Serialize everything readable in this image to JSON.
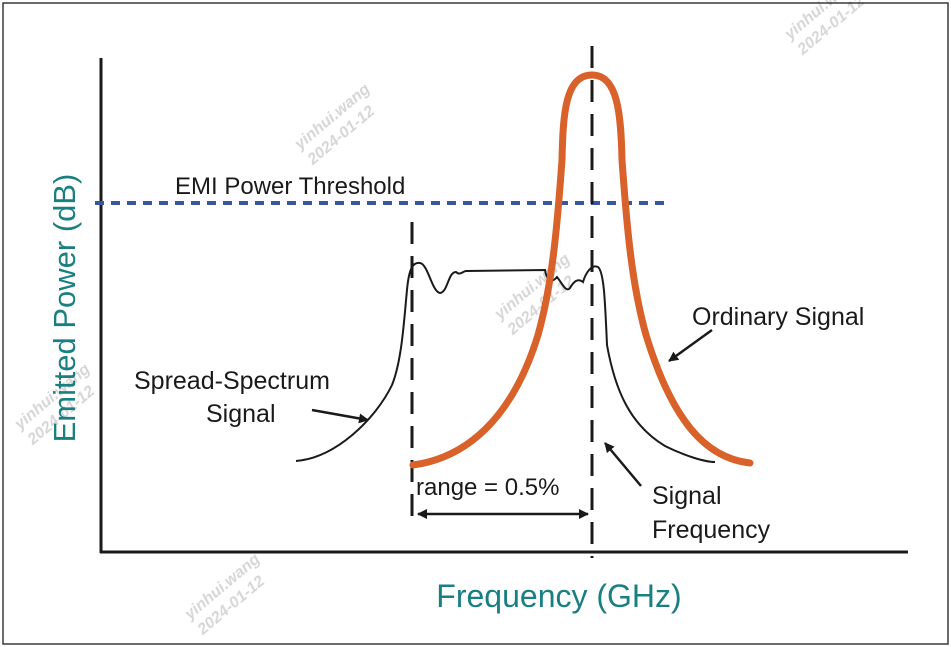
{
  "diagram": {
    "xlabel": "Frequency (GHz)",
    "ylabel": "Emitted Power (dB)",
    "threshold_label": "EMI Power Threshold",
    "ordinary_label": "Ordinary Signal",
    "spread_label_line1": "Spread-Spectrum",
    "spread_label_line2": "Signal",
    "range_label": "range = 0.5%",
    "signal_freq_line1": "Signal",
    "signal_freq_line2": "Frequency",
    "watermark_name": "yinhui.wang",
    "watermark_date": "2024-01-12",
    "colors": {
      "ordinary_signal": "#d9622b",
      "threshold": "#3b56a0",
      "axis_labels": "#1a7f80",
      "text": "#1a1a1a",
      "border": "#3a3a3a"
    }
  }
}
